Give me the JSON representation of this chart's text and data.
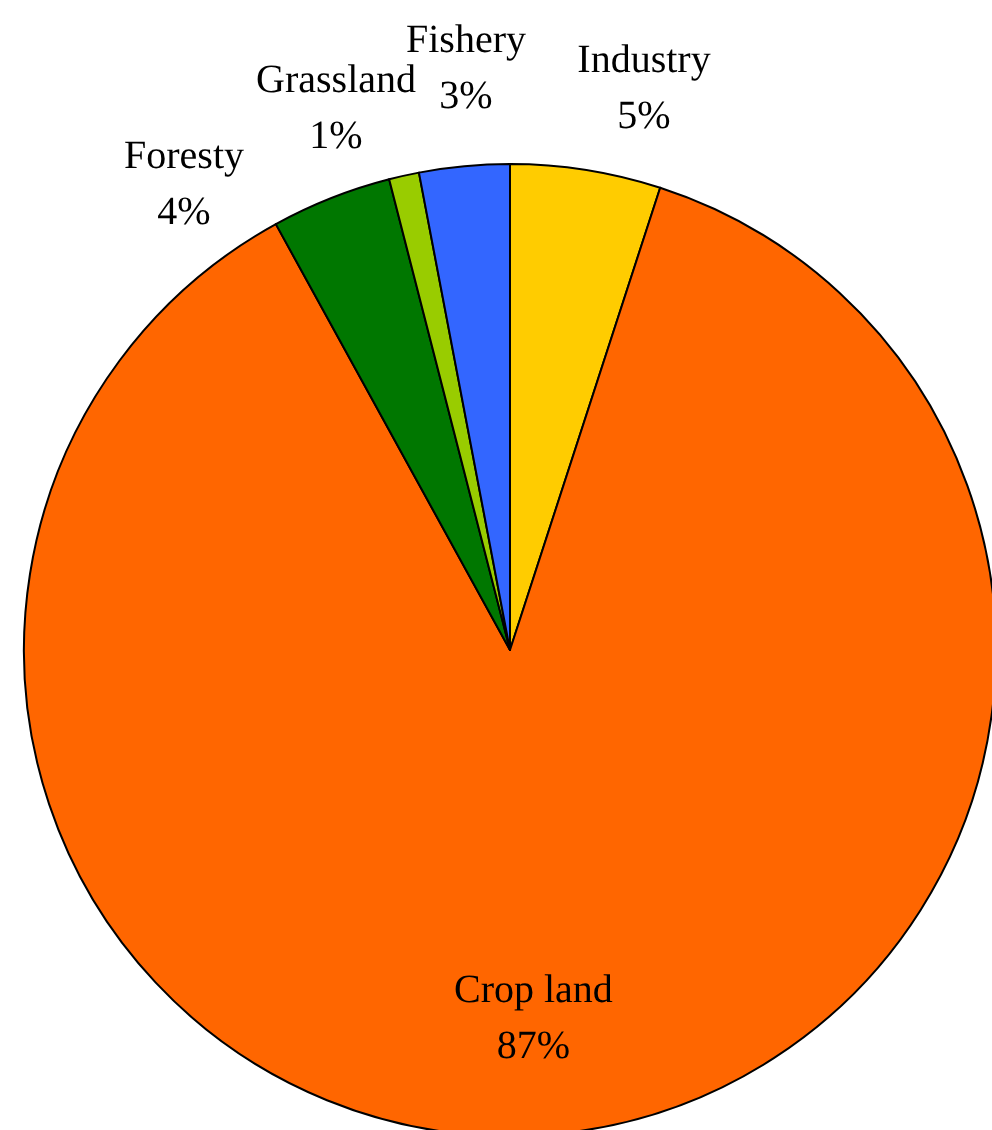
{
  "chart_data": {
    "type": "pie",
    "categories": [
      "Industry",
      "Crop land",
      "Foresty",
      "Grassland",
      "Fishery"
    ],
    "values": [
      5,
      87,
      4,
      1,
      3
    ],
    "colors": [
      "#ffcc00",
      "#ff6600",
      "#007700",
      "#99cc00",
      "#3366ff"
    ],
    "value_labels": [
      "5%",
      "87%",
      "4%",
      "1%",
      "3%"
    ]
  }
}
